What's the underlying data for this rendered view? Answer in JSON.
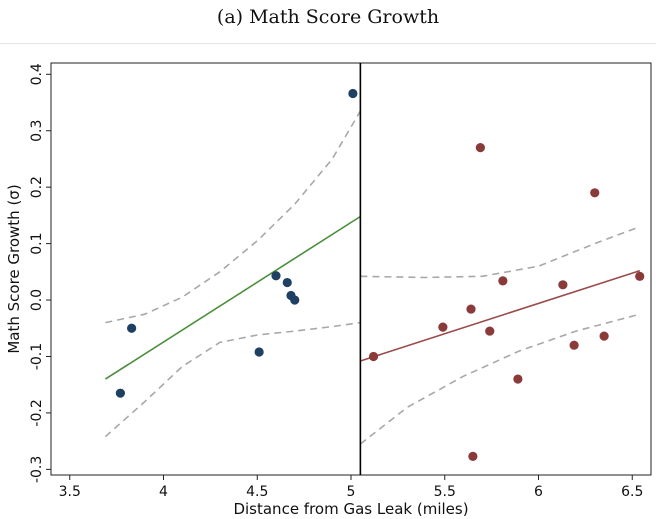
{
  "chart_data": {
    "type": "scatter",
    "title": "(a) Math Score Growth",
    "xlabel": "Distance from Gas Leak (miles)",
    "ylabel": "Math Score Growth (σ)",
    "xlim": [
      3.4,
      6.6
    ],
    "ylim": [
      -0.31,
      0.42
    ],
    "x_ticks": [
      3.5,
      4,
      4.5,
      5,
      5.5,
      6,
      6.5
    ],
    "x_tick_labels": [
      "3.5",
      "4",
      "4.5",
      "5",
      "5.5",
      "6",
      "6.5"
    ],
    "y_ticks": [
      -0.3,
      -0.2,
      -0.1,
      0.0,
      0.1,
      0.2,
      0.3,
      0.4
    ],
    "y_tick_labels": [
      "-0.3",
      "-0.2",
      "-0.1",
      "0.0",
      "0.1",
      "0.2",
      "0.3",
      "0.4"
    ],
    "grid": false,
    "cutoff_x": 5.05,
    "series": [
      {
        "side": "left",
        "color": "#1f3f63",
        "fit_color": "#4a8f3a",
        "points": [
          {
            "x": 3.77,
            "y": -0.165
          },
          {
            "x": 3.83,
            "y": -0.05
          },
          {
            "x": 4.51,
            "y": -0.092
          },
          {
            "x": 4.6,
            "y": 0.043
          },
          {
            "x": 4.66,
            "y": 0.031
          },
          {
            "x": 4.68,
            "y": 0.008
          },
          {
            "x": 4.7,
            "y": 0.0
          },
          {
            "x": 5.01,
            "y": 0.366
          }
        ],
        "fit": [
          {
            "x": 3.69,
            "y": -0.14
          },
          {
            "x": 5.05,
            "y": 0.148
          }
        ],
        "ci_upper": [
          {
            "x": 3.69,
            "y": -0.04
          },
          {
            "x": 3.9,
            "y": -0.025
          },
          {
            "x": 4.1,
            "y": 0.005
          },
          {
            "x": 4.3,
            "y": 0.05
          },
          {
            "x": 4.5,
            "y": 0.105
          },
          {
            "x": 4.7,
            "y": 0.17
          },
          {
            "x": 4.9,
            "y": 0.25
          },
          {
            "x": 5.05,
            "y": 0.335
          }
        ],
        "ci_lower": [
          {
            "x": 3.69,
            "y": -0.242
          },
          {
            "x": 3.9,
            "y": -0.18
          },
          {
            "x": 4.1,
            "y": -0.118
          },
          {
            "x": 4.3,
            "y": -0.075
          },
          {
            "x": 4.5,
            "y": -0.062
          },
          {
            "x": 4.7,
            "y": -0.055
          },
          {
            "x": 4.9,
            "y": -0.047
          },
          {
            "x": 5.05,
            "y": -0.04
          }
        ]
      },
      {
        "side": "right",
        "color": "#8b3a3a",
        "fit_color": "#9a4a4a",
        "points": [
          {
            "x": 5.12,
            "y": -0.1
          },
          {
            "x": 5.49,
            "y": -0.048
          },
          {
            "x": 5.64,
            "y": -0.016
          },
          {
            "x": 5.65,
            "y": -0.277
          },
          {
            "x": 5.69,
            "y": 0.27
          },
          {
            "x": 5.74,
            "y": -0.055
          },
          {
            "x": 5.81,
            "y": 0.034
          },
          {
            "x": 5.89,
            "y": -0.14
          },
          {
            "x": 6.13,
            "y": 0.027
          },
          {
            "x": 6.19,
            "y": -0.08
          },
          {
            "x": 6.3,
            "y": 0.19
          },
          {
            "x": 6.35,
            "y": -0.064
          },
          {
            "x": 6.54,
            "y": 0.042
          }
        ],
        "fit": [
          {
            "x": 5.05,
            "y": -0.108
          },
          {
            "x": 6.54,
            "y": 0.052
          }
        ],
        "ci_upper": [
          {
            "x": 5.05,
            "y": 0.042
          },
          {
            "x": 5.4,
            "y": 0.04
          },
          {
            "x": 5.7,
            "y": 0.042
          },
          {
            "x": 6.0,
            "y": 0.06
          },
          {
            "x": 6.3,
            "y": 0.1
          },
          {
            "x": 6.54,
            "y": 0.13
          }
        ],
        "ci_lower": [
          {
            "x": 5.05,
            "y": -0.255
          },
          {
            "x": 5.3,
            "y": -0.19
          },
          {
            "x": 5.6,
            "y": -0.135
          },
          {
            "x": 5.9,
            "y": -0.09
          },
          {
            "x": 6.2,
            "y": -0.055
          },
          {
            "x": 6.54,
            "y": -0.025
          }
        ]
      }
    ]
  }
}
